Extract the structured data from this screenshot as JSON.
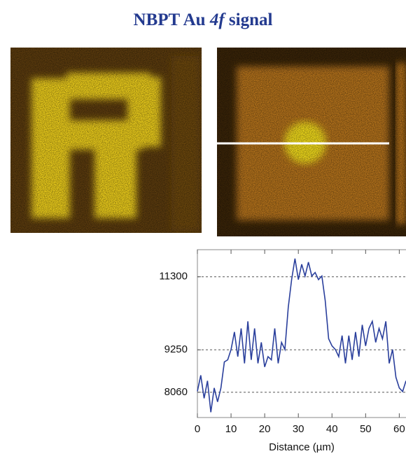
{
  "chart_data": {
    "type": "line",
    "title": [
      "NBPT Au ",
      "4f",
      " signal"
    ],
    "xlabel": "Distance (µm)",
    "x": [
      0,
      1,
      2,
      3,
      4,
      5,
      6,
      7,
      8,
      9,
      10,
      11,
      12,
      13,
      14,
      15,
      16,
      17,
      18,
      19,
      20,
      21,
      22,
      23,
      24,
      25,
      26,
      27,
      28,
      29,
      30,
      31,
      32,
      33,
      34,
      35,
      36,
      37,
      38,
      39,
      40,
      41,
      42,
      43,
      44,
      45,
      46,
      47,
      48,
      49,
      50,
      51,
      52,
      53,
      54,
      55,
      56,
      57,
      58,
      59,
      60,
      61,
      62
    ],
    "values": [
      8086,
      8536,
      7890,
      8380,
      7500,
      8180,
      7790,
      8180,
      8910,
      8970,
      9260,
      9750,
      9060,
      9850,
      8870,
      10050,
      8970,
      9850,
      8870,
      9460,
      8770,
      9060,
      8970,
      9850,
      8870,
      9460,
      9260,
      10440,
      11220,
      11810,
      11220,
      11650,
      11320,
      11710,
      11320,
      11420,
      11220,
      11320,
      10630,
      9560,
      9360,
      9260,
      9060,
      9650,
      8870,
      9650,
      8970,
      9750,
      9060,
      9950,
      9360,
      9850,
      10050,
      9460,
      9850,
      9560,
      10050,
      8870,
      9260,
      8480,
      8180,
      8080,
      8380
    ],
    "color": "#2a3f9c",
    "xlim": [
      0,
      62
    ],
    "xticks": [
      0,
      10,
      20,
      30,
      40,
      50,
      60
    ],
    "ylim": [
      7350,
      12060
    ],
    "yticks": [
      8060,
      9250,
      11300
    ],
    "grid": true
  }
}
